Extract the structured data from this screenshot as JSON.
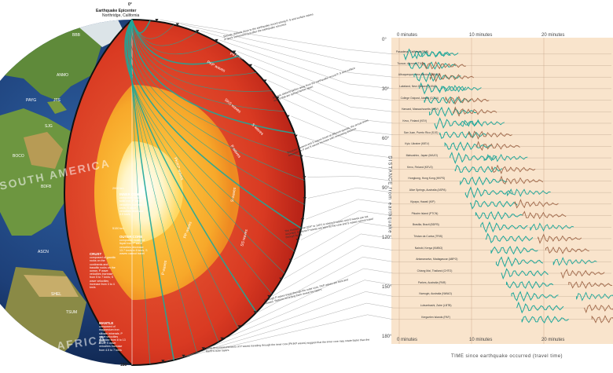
{
  "epicenter": {
    "marker": "0°",
    "title": "Earthquake Epicenter",
    "place": "Northridge, California"
  },
  "angles": {
    "a180": "180°"
  },
  "continents": {
    "south_america": "SOUTH AMERICA",
    "africa": "AFRICA"
  },
  "stations_globe": [
    "BBB",
    "ANMO",
    "PAYG",
    "JTS",
    "SJG",
    "BOCO",
    "BDFB",
    "ASCN",
    "TSUM",
    "SHEL"
  ],
  "layers": {
    "inner_core": {
      "title": "INNER CORE",
      "text": "composed mostly of solid iron. P wave velocities increase 11 km/s; S wave velocities decrease 3.5 km/s"
    },
    "outer_core": {
      "title": "OUTER CORE",
      "text": "composed mostly of liquid iron. P wave velocities decrease 13.7 km/s to 8 km/s; S waves cannot travel"
    },
    "crust": {
      "title": "CRUST",
      "text": "composed of granitic rocks on the continents and basaltic rocks on the ocean. P wave velocities increase from 5 to 7 km/s; S wave velocities increase from 3 to 4 km/s"
    },
    "mantle": {
      "title": "MANTLE",
      "text": "composed of magnesium iron silicate minerals. P wave velocities increase from 8 to 13 km/s; S wave velocities increase from 4.5 to 7 km/s"
    }
  },
  "depths": {
    "d1": "2900 km",
    "d2": "5150 km"
  },
  "wave_labels": [
    "PKP waves",
    "PKP waves",
    "SKS waves",
    "S waves",
    "P waves",
    "PKIKP waves",
    "PP waves",
    "SS waves",
    "P waves",
    "S waves"
  ],
  "notes": [
    "Seismic stations close to the earthquake record strong P, S and surface waves in quick succession just after the earthquake occurred.",
    "Seismic stations farther away from the earthquake record P, S and surface waves that are spread farther apart.",
    "Because P waves and S waves travel at different speeds, the arrival times between the P and S waves increase with increasing distance.",
    "The shadow zone (104° to 140°) is where P waves and S waves are not recorded, because P waves are bent by the core and S waves cannot travel through liquid.",
    "Although P waves travel through the outer core, PKP waves are bent and slowed. Stations recording them reveal the layers.",
    "Long-term measurements of P waves traveling through the inner core (PKIKP waves) suggest that the inner core may rotate faster than the Earth's outer layers."
  ],
  "seismogram": {
    "time_top": [
      "0 minutes",
      "10 minutes",
      "20 minutes"
    ],
    "time_bottom": [
      "0 minutes",
      "10 minutes",
      "20 minutes"
    ],
    "deg_ticks": [
      "0°",
      "30°",
      "60°",
      "90°",
      "120°",
      "150°",
      "180°"
    ],
    "x_axis_title": "TIME since earthquake occurred (travel time)",
    "y_axis_title": "DISTANCE from earthquake",
    "stations": [
      "Pasadena, California (PAS)",
      "Tucson, Arizona (TUC)",
      "Albuquerque, New Mexico (ANMO)",
      "Lakeland, New Zealand (LKNZ)",
      "College Outpost, Alaska (COLA)",
      "Harvard, Massachusetts (HRV)",
      "Kevo, Finland (KEV)",
      "San Juan, Puerto Rico (SJG)",
      "Kyiv, Ukraine (KIEV)",
      "Matsushiro, Japan (MAJO)",
      "Kevo, Finland (KEV2)",
      "Hongkong, Hong Kong (HKPS)",
      "Alice Springs, Australia (ASPA)",
      "Kipapa, Hawaii (KIP)",
      "Pitcairn Island (PTCN)",
      "Brasilia, Brazil (BDFB)",
      "Tristan da Cunha (TRIS)",
      "Nairobi, Kenya (KMBO)",
      "Antananarivo, Madagascar (ABPO)",
      "Chiang Mai, Thailand (CHTO)",
      "Parkes, Australia (PAR)",
      "Narrogin, Australia (NWAO)",
      "Lubumbashi, Zaire (LBTB)",
      "Kerguelen Islands (PAF)"
    ]
  },
  "colors": {
    "p_wave": "#1ea79a",
    "s_wave": "#a0684a",
    "crust_outline": "#111111",
    "chart_bg": "#f9e4cc"
  }
}
